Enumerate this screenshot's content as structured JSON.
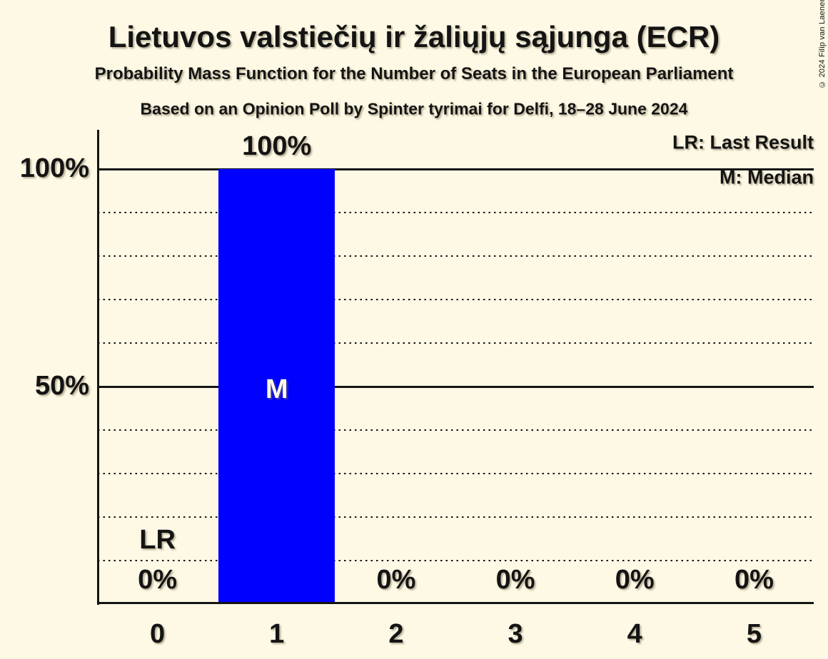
{
  "copyright": "© 2024 Filip van Laenen",
  "legend": {
    "last_result": "LR: Last Result",
    "median": "M: Median"
  },
  "colors": {
    "background": "#FDF9E5",
    "bar": "#0000FF",
    "ink": "#141414"
  },
  "chart_data": {
    "type": "bar",
    "title": "Lietuvos valstiečių ir žaliųjų sąjunga (ECR)",
    "subtitle": "Probability Mass Function for the Number of Seats in the European Parliament",
    "source_note": "Based on an Opinion Poll by Spinter tyrimai for Delfi, 18–28 June 2024",
    "categories": [
      "0",
      "1",
      "2",
      "3",
      "4",
      "5"
    ],
    "values": [
      0,
      100,
      0,
      0,
      0,
      0
    ],
    "value_labels": [
      "0%",
      "100%",
      "0%",
      "0%",
      "0%",
      "0%"
    ],
    "y_ticks": [
      {
        "label": "100%",
        "value": 100
      },
      {
        "label": "50%",
        "value": 50
      }
    ],
    "ylim": [
      0,
      100
    ],
    "gridlines": {
      "dotted_percents": [
        10,
        20,
        30,
        40,
        60,
        70,
        80,
        90
      ],
      "solid_percents": [
        50,
        100
      ]
    },
    "markers": {
      "median": {
        "label": "M",
        "category_index": 1,
        "at_percent": 50
      },
      "last_result": {
        "label": "LR",
        "category_index": 0,
        "above_percent": 10
      }
    },
    "legend_position": "top-right",
    "grid": "horizontal only"
  }
}
